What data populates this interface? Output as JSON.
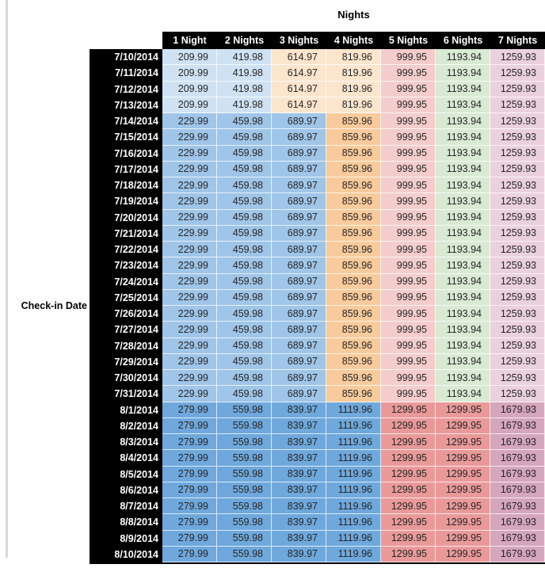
{
  "page": {
    "background": "#ffffff",
    "left_strip_color": "#d9d9d9"
  },
  "chart_data": {
    "type": "table",
    "title": "Nights",
    "row_axis_label": "Check-in Date",
    "header_bg": "#000000",
    "header_text_color": "#ffffff",
    "columns": [
      "1 Night",
      "2 Nights",
      "3 Nights",
      "4 Nights",
      "5 Nights",
      "6 Nights",
      "7 Nights"
    ],
    "row_groups": [
      {
        "name": "early-july-tier",
        "dates": [
          "7/10/2014",
          "7/11/2014",
          "7/12/2014",
          "7/13/2014"
        ],
        "values": [
          "209.99",
          "419.98",
          "614.97",
          "819.96",
          "999.95",
          "1193.94",
          "1259.93"
        ],
        "cell_colors": [
          "#cfe2f3",
          "#cfe2f3",
          "#fce5cd",
          "#fce5cd",
          "#f4cccc",
          "#d9ead3",
          "#ead1dc"
        ]
      },
      {
        "name": "mid-july-tier",
        "dates": [
          "7/14/2014",
          "7/15/2014",
          "7/16/2014",
          "7/17/2014",
          "7/18/2014",
          "7/19/2014",
          "7/20/2014",
          "7/21/2014",
          "7/22/2014",
          "7/23/2014",
          "7/24/2014",
          "7/25/2014",
          "7/26/2014",
          "7/27/2014",
          "7/28/2014",
          "7/29/2014",
          "7/30/2014",
          "7/31/2014"
        ],
        "values": [
          "229.99",
          "459.98",
          "689.97",
          "859.96",
          "999.95",
          "1193.94",
          "1259.93"
        ],
        "cell_colors": [
          "#9fc5e8",
          "#9fc5e8",
          "#9fc5e8",
          "#f9cb9c",
          "#f4cccc",
          "#d9ead3",
          "#ead1dc"
        ]
      },
      {
        "name": "august-tier",
        "dates": [
          "8/1/2014",
          "8/2/2014",
          "8/3/2014",
          "8/4/2014",
          "8/5/2014",
          "8/6/2014",
          "8/7/2014",
          "8/8/2014",
          "8/9/2014",
          "8/10/2014"
        ],
        "values": [
          "279.99",
          "559.98",
          "839.97",
          "1119.96",
          "1299.95",
          "1299.95",
          "1679.93"
        ],
        "cell_colors": [
          "#6fa8dc",
          "#6fa8dc",
          "#6fa8dc",
          "#6fa8dc",
          "#ea9999",
          "#ea9999",
          "#d5a6bd"
        ]
      }
    ]
  }
}
